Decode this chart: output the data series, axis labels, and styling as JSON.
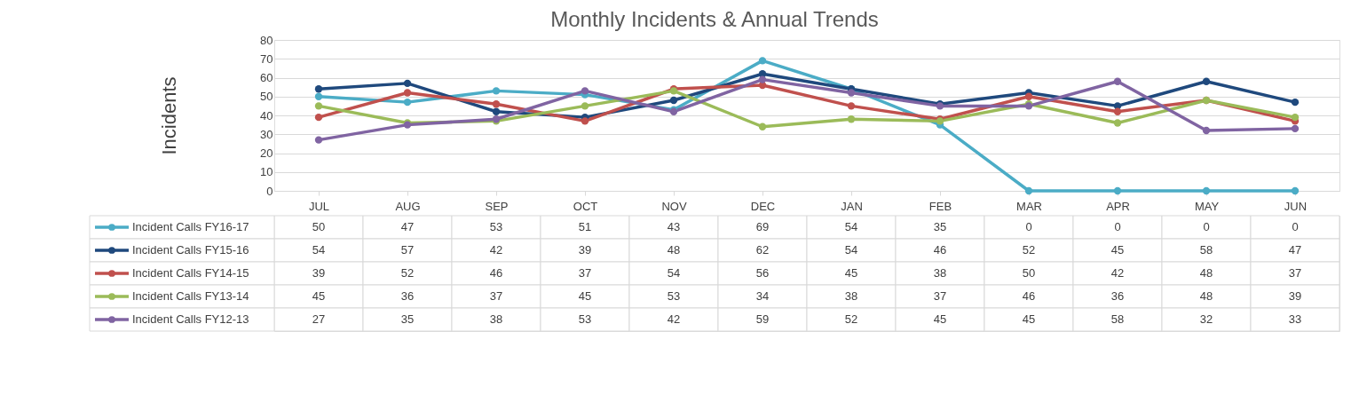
{
  "chart_data": {
    "type": "line",
    "title": "Monthly Incidents & Annual Trends",
    "ylabel": "Incidents",
    "categories": [
      "JUL",
      "AUG",
      "SEP",
      "OCT",
      "NOV",
      "DEC",
      "JAN",
      "FEB",
      "MAR",
      "APR",
      "MAY",
      "JUN"
    ],
    "series": [
      {
        "name": "Incident Calls FY16-17",
        "color": "#4bacc6",
        "values": [
          50,
          47,
          53,
          51,
          43,
          69,
          54,
          35,
          0,
          0,
          0,
          0
        ]
      },
      {
        "name": "Incident Calls FY15-16",
        "color": "#1f497d",
        "values": [
          54,
          57,
          42,
          39,
          48,
          62,
          54,
          46,
          52,
          45,
          58,
          47
        ]
      },
      {
        "name": "Incident Calls FY14-15",
        "color": "#c0504d",
        "values": [
          39,
          52,
          46,
          37,
          54,
          56,
          45,
          38,
          50,
          42,
          48,
          37
        ]
      },
      {
        "name": "Incident Calls FY13-14",
        "color": "#9bbb59",
        "values": [
          45,
          36,
          37,
          45,
          53,
          34,
          38,
          37,
          46,
          36,
          48,
          39
        ]
      },
      {
        "name": "Incident Calls FY12-13",
        "color": "#8064a2",
        "values": [
          27,
          35,
          38,
          53,
          42,
          59,
          52,
          45,
          45,
          58,
          32,
          33
        ]
      }
    ],
    "ylim": [
      0,
      80
    ],
    "yticks": [
      0,
      10,
      20,
      30,
      40,
      50,
      60,
      70,
      80
    ],
    "grid": "y",
    "marker": "circle",
    "line_style": "solid",
    "legend": "bottom left",
    "data_labels": true
  }
}
